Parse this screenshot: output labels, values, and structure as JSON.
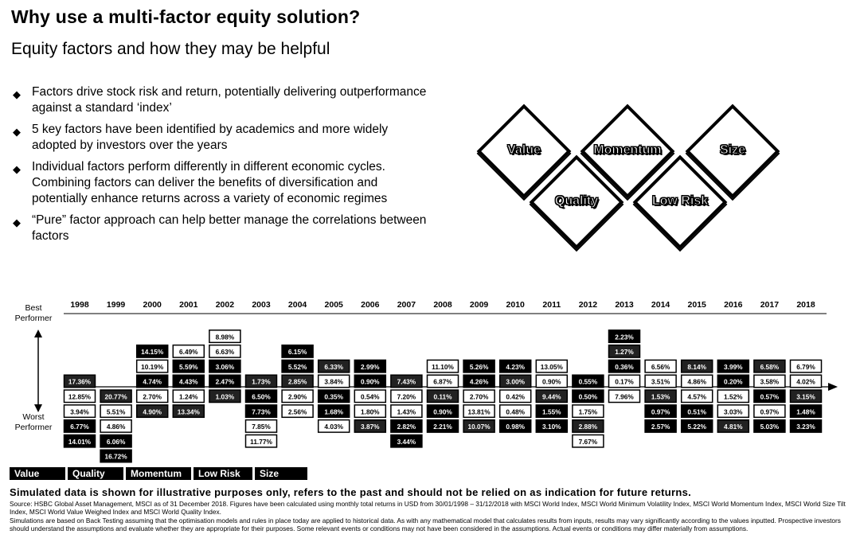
{
  "header": {
    "title": "Why use a multi-factor equity solution?",
    "subtitle": "Equity factors and how they may be helpful"
  },
  "bullets": [
    "Factors drive stock risk and return, potentially delivering outperformance against a standard ‘index’",
    "5 key factors have been identified by academics and more widely adopted by investors over the years",
    "Individual factors perform differently in different economic cycles. Combining factors can deliver the benefits of diversification and potentially enhance returns across a variety of economic regimes",
    "“Pure” factor approach can help better manage the correlations between factors"
  ],
  "factor_diamonds": {
    "value": "Value",
    "momentum": "Momentum",
    "size": "Size",
    "quality": "Quality",
    "low_risk": "Low Risk"
  },
  "axis_labels": {
    "best": "Best Performer",
    "worst": "Worst Performer"
  },
  "chart_data": {
    "type": "table",
    "years": [
      "1998",
      "1999",
      "2000",
      "2001",
      "2002",
      "2003",
      "2004",
      "2005",
      "2006",
      "2007",
      "2008",
      "2009",
      "2010",
      "2011",
      "2012",
      "2013",
      "2014",
      "2015",
      "2016",
      "2017",
      "2018"
    ],
    "factor_colors": {
      "Value": "#000000",
      "Quality": "#3a3a3a",
      "Momentum": "#1a1a1a",
      "Low Risk": "#2b2b2b",
      "Size": "#000000"
    },
    "columns": [
      {
        "year": "1998",
        "start": 4,
        "cells": [
          [
            "17.36%",
            "Momentum"
          ],
          [
            "12.85%",
            "Quality"
          ],
          [
            "3.94%",
            "Low Risk"
          ],
          [
            "6.77%",
            "Value"
          ],
          [
            "14.01%",
            "Size"
          ]
        ]
      },
      {
        "year": "1999",
        "start": 5,
        "cells": [
          [
            "20.77%",
            "Momentum"
          ],
          [
            "5.51%",
            "Quality"
          ],
          [
            "4.86%",
            "Low Risk"
          ],
          [
            "6.06%",
            "Size"
          ],
          [
            "16.72%",
            "Value"
          ]
        ]
      },
      {
        "year": "2000",
        "start": 2,
        "cells": [
          [
            "14.15%",
            "Value"
          ],
          [
            "10.19%",
            "Low Risk"
          ],
          [
            "4.74%",
            "Size"
          ],
          [
            "2.70%",
            "Quality"
          ],
          [
            "4.90%",
            "Momentum"
          ]
        ]
      },
      {
        "year": "2001",
        "start": 2,
        "cells": [
          [
            "6.49%",
            "Low Risk"
          ],
          [
            "5.59%",
            "Value"
          ],
          [
            "4.43%",
            "Size"
          ],
          [
            "1.24%",
            "Quality"
          ],
          [
            "13.34%",
            "Momentum"
          ]
        ]
      },
      {
        "year": "2002",
        "start": 1,
        "cells": [
          [
            "8.98%",
            "Low Risk"
          ],
          [
            "6.63%",
            "Quality"
          ],
          [
            "3.06%",
            "Value"
          ],
          [
            "2.47%",
            "Size"
          ],
          [
            "1.03%",
            "Momentum"
          ]
        ]
      },
      {
        "year": "2003",
        "start": 4,
        "cells": [
          [
            "1.73%",
            "Momentum"
          ],
          [
            "6.50%",
            "Size"
          ],
          [
            "7.73%",
            "Value"
          ],
          [
            "7.85%",
            "Low Risk"
          ],
          [
            "11.77%",
            "Quality"
          ]
        ]
      },
      {
        "year": "2004",
        "start": 2,
        "cells": [
          [
            "6.15%",
            "Size"
          ],
          [
            "5.52%",
            "Value"
          ],
          [
            "2.85%",
            "Momentum"
          ],
          [
            "2.90%",
            "Quality"
          ],
          [
            "2.56%",
            "Low Risk"
          ]
        ]
      },
      {
        "year": "2005",
        "start": 3,
        "cells": [
          [
            "6.33%",
            "Momentum"
          ],
          [
            "3.84%",
            "Low Risk"
          ],
          [
            "0.35%",
            "Value"
          ],
          [
            "1.68%",
            "Size"
          ],
          [
            "4.03%",
            "Quality"
          ]
        ]
      },
      {
        "year": "2006",
        "start": 3,
        "cells": [
          [
            "2.99%",
            "Value"
          ],
          [
            "0.90%",
            "Size"
          ],
          [
            "0.54%",
            "Quality"
          ],
          [
            "1.80%",
            "Low Risk"
          ],
          [
            "3.87%",
            "Momentum"
          ]
        ]
      },
      {
        "year": "2007",
        "start": 4,
        "cells": [
          [
            "7.43%",
            "Momentum"
          ],
          [
            "7.20%",
            "Quality"
          ],
          [
            "1.43%",
            "Low Risk"
          ],
          [
            "2.82%",
            "Size"
          ],
          [
            "3.44%",
            "Value"
          ]
        ]
      },
      {
        "year": "2008",
        "start": 3,
        "cells": [
          [
            "11.10%",
            "Low Risk"
          ],
          [
            "6.87%",
            "Quality"
          ],
          [
            "0.11%",
            "Momentum"
          ],
          [
            "0.90%",
            "Size"
          ],
          [
            "2.21%",
            "Value"
          ]
        ]
      },
      {
        "year": "2009",
        "start": 3,
        "cells": [
          [
            "5.26%",
            "Size"
          ],
          [
            "4.26%",
            "Value"
          ],
          [
            "2.70%",
            "Quality"
          ],
          [
            "13.81%",
            "Low Risk"
          ],
          [
            "10.07%",
            "Momentum"
          ]
        ]
      },
      {
        "year": "2010",
        "start": 3,
        "cells": [
          [
            "4.23%",
            "Size"
          ],
          [
            "3.00%",
            "Momentum"
          ],
          [
            "0.42%",
            "Low Risk"
          ],
          [
            "0.48%",
            "Quality"
          ],
          [
            "0.98%",
            "Value"
          ]
        ]
      },
      {
        "year": "2011",
        "start": 3,
        "cells": [
          [
            "13.05%",
            "Low Risk"
          ],
          [
            "0.90%",
            "Quality"
          ],
          [
            "9.44%",
            "Momentum"
          ],
          [
            "1.55%",
            "Value"
          ],
          [
            "3.10%",
            "Size"
          ]
        ]
      },
      {
        "year": "2012",
        "start": 4,
        "cells": [
          [
            "0.55%",
            "Value"
          ],
          [
            "0.50%",
            "Size"
          ],
          [
            "1.75%",
            "Quality"
          ],
          [
            "2.88%",
            "Momentum"
          ],
          [
            "7.67%",
            "Low Risk"
          ]
        ]
      },
      {
        "year": "2013",
        "start": 1,
        "cells": [
          [
            "2.23%",
            "Size"
          ],
          [
            "1.27%",
            "Momentum"
          ],
          [
            "0.36%",
            "Value"
          ],
          [
            "0.17%",
            "Quality"
          ],
          [
            "7.96%",
            "Low Risk"
          ]
        ]
      },
      {
        "year": "2014",
        "start": 3,
        "cells": [
          [
            "6.56%",
            "Low Risk"
          ],
          [
            "3.51%",
            "Quality"
          ],
          [
            "1.53%",
            "Momentum"
          ],
          [
            "0.97%",
            "Size"
          ],
          [
            "2.57%",
            "Value"
          ]
        ]
      },
      {
        "year": "2015",
        "start": 3,
        "cells": [
          [
            "8.14%",
            "Momentum"
          ],
          [
            "4.86%",
            "Quality"
          ],
          [
            "4.57%",
            "Low Risk"
          ],
          [
            "0.51%",
            "Size"
          ],
          [
            "5.22%",
            "Value"
          ]
        ]
      },
      {
        "year": "2016",
        "start": 3,
        "cells": [
          [
            "3.99%",
            "Value"
          ],
          [
            "0.20%",
            "Size"
          ],
          [
            "1.52%",
            "Low Risk"
          ],
          [
            "3.03%",
            "Quality"
          ],
          [
            "4.81%",
            "Momentum"
          ]
        ]
      },
      {
        "year": "2017",
        "start": 3,
        "cells": [
          [
            "6.58%",
            "Momentum"
          ],
          [
            "3.58%",
            "Quality"
          ],
          [
            "0.57%",
            "Size"
          ],
          [
            "0.97%",
            "Low Risk"
          ],
          [
            "5.03%",
            "Value"
          ]
        ]
      },
      {
        "year": "2018",
        "start": 3,
        "cells": [
          [
            "6.79%",
            "Low Risk"
          ],
          [
            "4.02%",
            "Quality"
          ],
          [
            "3.15%",
            "Momentum"
          ],
          [
            "1.48%",
            "Size"
          ],
          [
            "3.23%",
            "Value"
          ]
        ]
      }
    ]
  },
  "legend": [
    "Value",
    "Quality",
    "Momentum",
    "Low Risk",
    "Size"
  ],
  "disclaimer": {
    "headline": "Simulated data is shown for illustrative purposes only, refers to the past and should not be relied on as indication for future returns.",
    "source": "Source: HSBC Global Asset Management, MSCI as of 31 December 2018. Figures have been calculated using monthly total returns in USD from 30/01/1998 – 31/12/2018 with MSCI World Index, MSCI World Minimum Volatility Index, MSCI World Momentum Index, MSCI World Size Tilt Index, MSCI World Value Weighed Index and MSCI World Quality Index.",
    "note": "Simulations are based on Back Testing assuming that the optimisation models and rules in place today are applied to historical data. As with any mathematical model that calculates results from inputs, results may vary significantly according to the values inputted. Prospective investors should understand the assumptions and evaluate whether they are appropriate for their purposes. Some relevant events or conditions may not have been considered in the assumptions. Actual events or conditions may differ materially from assumptions."
  }
}
